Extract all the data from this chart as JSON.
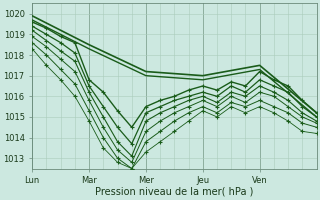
{
  "xlabel": "Pression niveau de la mer( hPa )",
  "ylim": [
    1012.5,
    1020.5
  ],
  "yticks": [
    1013,
    1014,
    1015,
    1016,
    1017,
    1018,
    1019,
    1020
  ],
  "xlim": [
    0,
    120
  ],
  "xtick_positions": [
    0,
    24,
    48,
    72,
    96
  ],
  "xtick_labels": [
    "Lun",
    "Mar",
    "Mer",
    "Jeu",
    "Ven"
  ],
  "bg_color": "#cce8e0",
  "grid_color": "#aaccbb",
  "line_color": "#1a5c1a",
  "vline_color": "#6a8a7a",
  "series": [
    {
      "x": [
        0,
        24,
        48,
        72,
        96,
        120
      ],
      "y": [
        1019.9,
        1018.5,
        1017.2,
        1017.0,
        1017.5,
        1015.2
      ],
      "style": "-",
      "marker": null,
      "lw": 1.2,
      "ms": 0
    },
    {
      "x": [
        0,
        24,
        48,
        72,
        96,
        120
      ],
      "y": [
        1019.7,
        1018.3,
        1017.0,
        1016.8,
        1017.3,
        1015.0
      ],
      "style": "-",
      "marker": null,
      "lw": 1.0,
      "ms": 0
    },
    {
      "x": [
        0,
        6,
        12,
        18,
        24,
        30,
        36,
        42,
        48,
        54,
        60,
        66,
        72,
        78,
        84,
        90,
        96,
        102,
        108,
        114,
        120
      ],
      "y": [
        1019.6,
        1019.3,
        1018.9,
        1018.6,
        1016.8,
        1016.2,
        1015.3,
        1014.5,
        1015.5,
        1015.8,
        1016.0,
        1016.3,
        1016.5,
        1016.3,
        1016.7,
        1016.5,
        1017.2,
        1016.8,
        1016.5,
        1015.8,
        1015.2
      ],
      "style": "-",
      "marker": "+",
      "lw": 1.0,
      "ms": 3.5
    },
    {
      "x": [
        0,
        6,
        12,
        18,
        24,
        30,
        36,
        42,
        48,
        54,
        60,
        66,
        72,
        78,
        84,
        90,
        96,
        102,
        108,
        114,
        120
      ],
      "y": [
        1019.4,
        1019.0,
        1018.6,
        1018.1,
        1016.5,
        1015.5,
        1014.5,
        1013.7,
        1015.2,
        1015.5,
        1015.8,
        1016.0,
        1016.2,
        1016.0,
        1016.5,
        1016.2,
        1016.8,
        1016.5,
        1016.2,
        1015.5,
        1015.0
      ],
      "style": "-",
      "marker": "+",
      "lw": 0.9,
      "ms": 3.5
    },
    {
      "x": [
        0,
        6,
        12,
        18,
        24,
        30,
        36,
        42,
        48,
        54,
        60,
        66,
        72,
        78,
        84,
        90,
        96,
        102,
        108,
        114,
        120
      ],
      "y": [
        1019.2,
        1018.7,
        1018.2,
        1017.7,
        1016.2,
        1015.0,
        1013.8,
        1013.1,
        1014.8,
        1015.2,
        1015.5,
        1015.8,
        1016.0,
        1015.7,
        1016.2,
        1016.0,
        1016.5,
        1016.2,
        1015.8,
        1015.2,
        1014.8
      ],
      "style": "-",
      "marker": "+",
      "lw": 0.8,
      "ms": 3.5
    },
    {
      "x": [
        0,
        6,
        12,
        18,
        24,
        30,
        36,
        42,
        48,
        54,
        60,
        66,
        72,
        78,
        84,
        90,
        96,
        102,
        108,
        114,
        120
      ],
      "y": [
        1018.9,
        1018.4,
        1017.8,
        1017.2,
        1015.8,
        1014.5,
        1013.4,
        1012.8,
        1014.3,
        1014.8,
        1015.2,
        1015.5,
        1015.8,
        1015.5,
        1016.0,
        1015.7,
        1016.2,
        1016.0,
        1015.5,
        1015.0,
        1014.7
      ],
      "style": "-",
      "marker": "+",
      "lw": 0.7,
      "ms": 3.0
    },
    {
      "x": [
        0,
        6,
        12,
        18,
        24,
        30,
        36,
        42,
        48,
        54,
        60,
        66,
        72,
        78,
        84,
        90,
        96,
        102,
        108,
        114,
        120
      ],
      "y": [
        1018.6,
        1018.0,
        1017.3,
        1016.6,
        1015.3,
        1014.0,
        1013.0,
        1012.5,
        1013.8,
        1014.3,
        1014.8,
        1015.2,
        1015.5,
        1015.2,
        1015.7,
        1015.5,
        1015.8,
        1015.5,
        1015.2,
        1014.7,
        1014.5
      ],
      "style": "-",
      "marker": "+",
      "lw": 0.7,
      "ms": 3.0
    },
    {
      "x": [
        0,
        6,
        12,
        18,
        24,
        30,
        36,
        42,
        48,
        54,
        60,
        66,
        72,
        78,
        84,
        90,
        96,
        102,
        108,
        114,
        120
      ],
      "y": [
        1018.3,
        1017.5,
        1016.8,
        1016.0,
        1014.8,
        1013.5,
        1012.8,
        1012.5,
        1013.3,
        1013.8,
        1014.3,
        1014.8,
        1015.3,
        1015.0,
        1015.5,
        1015.2,
        1015.5,
        1015.2,
        1014.8,
        1014.3,
        1014.2
      ],
      "style": "-",
      "marker": "+",
      "lw": 0.6,
      "ms": 3.0
    }
  ],
  "vline_positions": [
    0,
    24,
    48,
    72,
    96,
    120
  ]
}
